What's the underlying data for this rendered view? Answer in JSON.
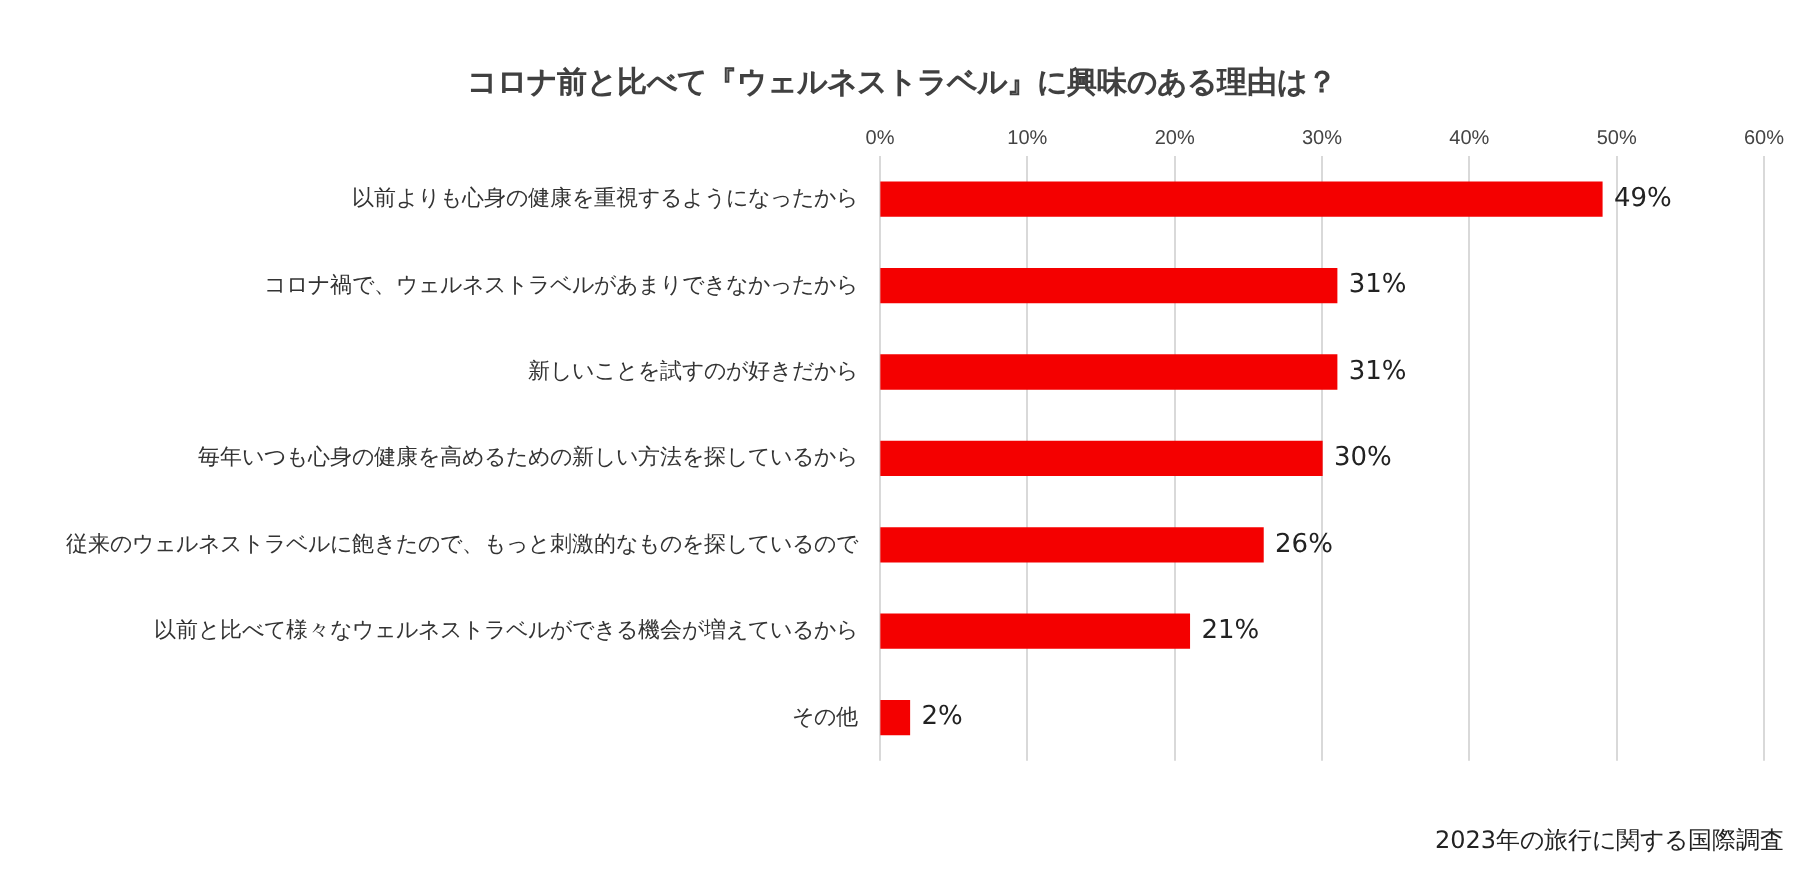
{
  "chart_data": {
    "type": "bar",
    "orientation": "horizontal",
    "title": "コロナ前と比べて『ウェルネストラベル』に興味のある理由は？",
    "categories": [
      "以前よりも心身の健康を重視するようになったから",
      "コロナ禍で、ウェルネストラベルがあまりできなかったから",
      "新しいことを試すのが好きだから",
      "毎年いつも心身の健康を高めるための新しい方法を探しているから",
      "従来のウェルネストラベルに飽きたので、もっと刺激的なものを探しているので",
      "以前と比べて様々なウェルネストラベルができる機会が増えているから",
      "その他"
    ],
    "values": [
      49,
      31,
      31,
      30,
      26,
      21,
      2
    ],
    "value_labels": [
      "49%",
      "31%",
      "31%",
      "30%",
      "26%",
      "21%",
      "2%"
    ],
    "color": "#f40000",
    "xlim": [
      0,
      60
    ],
    "xticks": [
      {
        "value": 0,
        "label": "0%"
      },
      {
        "value": 10,
        "label": "10%"
      },
      {
        "value": 20,
        "label": "20%"
      },
      {
        "value": 30,
        "label": "30%"
      },
      {
        "value": 40,
        "label": "40%"
      },
      {
        "value": 50,
        "label": "50%"
      },
      {
        "value": 60,
        "label": "60%"
      }
    ],
    "grid": "x",
    "annotations": [
      "2023年の旅行に関する国際調査"
    ]
  }
}
